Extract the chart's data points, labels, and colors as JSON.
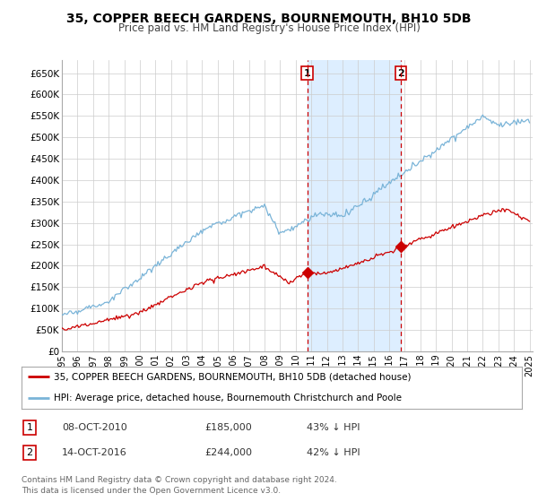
{
  "title": "35, COPPER BEECH GARDENS, BOURNEMOUTH, BH10 5DB",
  "subtitle": "Price paid vs. HM Land Registry's House Price Index (HPI)",
  "title_fontsize": 10,
  "subtitle_fontsize": 8.5,
  "ylim": [
    0,
    680000
  ],
  "yticks": [
    0,
    50000,
    100000,
    150000,
    200000,
    250000,
    300000,
    350000,
    400000,
    450000,
    500000,
    550000,
    600000,
    650000
  ],
  "ytick_labels": [
    "£0",
    "£50K",
    "£100K",
    "£150K",
    "£200K",
    "£250K",
    "£300K",
    "£350K",
    "£400K",
    "£450K",
    "£500K",
    "£550K",
    "£600K",
    "£650K"
  ],
  "xtick_years": [
    1995,
    1996,
    1997,
    1998,
    1999,
    2000,
    2001,
    2002,
    2003,
    2004,
    2005,
    2006,
    2007,
    2008,
    2009,
    2010,
    2011,
    2012,
    2013,
    2014,
    2015,
    2016,
    2017,
    2018,
    2019,
    2020,
    2021,
    2022,
    2023,
    2024,
    2025
  ],
  "shaded_region": [
    2010.75,
    2016.75
  ],
  "marker1_x": 2010.75,
  "marker1_y": 185000,
  "marker1_label": "1",
  "marker1_date": "08-OCT-2010",
  "marker1_price": "£185,000",
  "marker1_pct": "43% ↓ HPI",
  "marker2_x": 2016.75,
  "marker2_y": 244000,
  "marker2_label": "2",
  "marker2_date": "14-OCT-2016",
  "marker2_price": "£244,000",
  "marker2_pct": "42% ↓ HPI",
  "hpi_color": "#7ab4d8",
  "price_color": "#cc0000",
  "dashed_line_color": "#cc0000",
  "shaded_color": "#ddeeff",
  "legend_house": "35, COPPER BEECH GARDENS, BOURNEMOUTH, BH10 5DB (detached house)",
  "legend_hpi": "HPI: Average price, detached house, Bournemouth Christchurch and Poole",
  "footnote1": "Contains HM Land Registry data © Crown copyright and database right 2024.",
  "footnote2": "This data is licensed under the Open Government Licence v3.0.",
  "background_color": "#ffffff",
  "grid_color": "#cccccc"
}
